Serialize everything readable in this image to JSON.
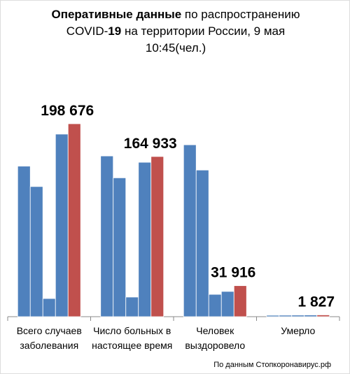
{
  "chart_data": {
    "type": "bar",
    "title_parts": [
      {
        "text": "Оперативные данные",
        "bold": true
      },
      {
        "text": " по распространению COVID-",
        "bold": false
      },
      {
        "text": "19",
        "bold": true
      },
      {
        "text": " на территории России, 9 мая 10:45(чел.)",
        "bold": false
      }
    ],
    "categories": [
      "Всего случаев заболевания",
      "Число больных в настоящее время",
      "Человек выздоровело",
      "Умерло"
    ],
    "series": [
      {
        "color": "#4f81bd",
        "values": [
          155000,
          165500,
          177000,
          1451
        ]
      },
      {
        "color": "#4f81bd",
        "values": [
          134000,
          143000,
          151000,
          1537
        ]
      },
      {
        "color": "#4f81bd",
        "values": [
          18700,
          20200,
          23000,
          1625
        ]
      },
      {
        "color": "#4f81bd",
        "values": [
          188000,
          159000,
          26000,
          1723
        ]
      },
      {
        "color": "#c0504d",
        "values": [
          198676,
          164933,
          31916,
          1827
        ],
        "value_labels": [
          "198 676",
          "164 933",
          "31 916",
          "1 827"
        ]
      }
    ],
    "source": "По данным Стопкоронавирус.рф"
  }
}
